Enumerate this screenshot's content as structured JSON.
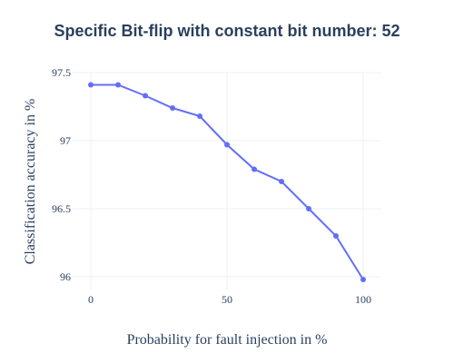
{
  "chart_data": {
    "type": "line",
    "title": "Specific Bit-flip with constant bit number: 52",
    "xlabel": "Probability for fault injection in %",
    "ylabel": "Classification accuracy in %",
    "xlim": [
      0,
      100
    ],
    "ylim": [
      95.9,
      97.5
    ],
    "x_ticks": [
      0,
      50,
      100
    ],
    "x_tick_labels": [
      "0",
      "50",
      "100"
    ],
    "y_ticks": [
      96,
      96.5,
      97,
      97.5
    ],
    "y_tick_labels": [
      "96",
      "96.5",
      "97",
      "97.5"
    ],
    "grid": true,
    "legend": "none",
    "line_color": "#636efa",
    "series": [
      {
        "x": [
          0,
          10,
          20,
          30,
          40,
          50,
          60,
          70,
          80,
          90,
          100
        ],
        "y": [
          97.41,
          97.41,
          97.33,
          97.24,
          97.18,
          96.97,
          96.79,
          96.7,
          96.5,
          96.3,
          95.98
        ]
      }
    ]
  }
}
